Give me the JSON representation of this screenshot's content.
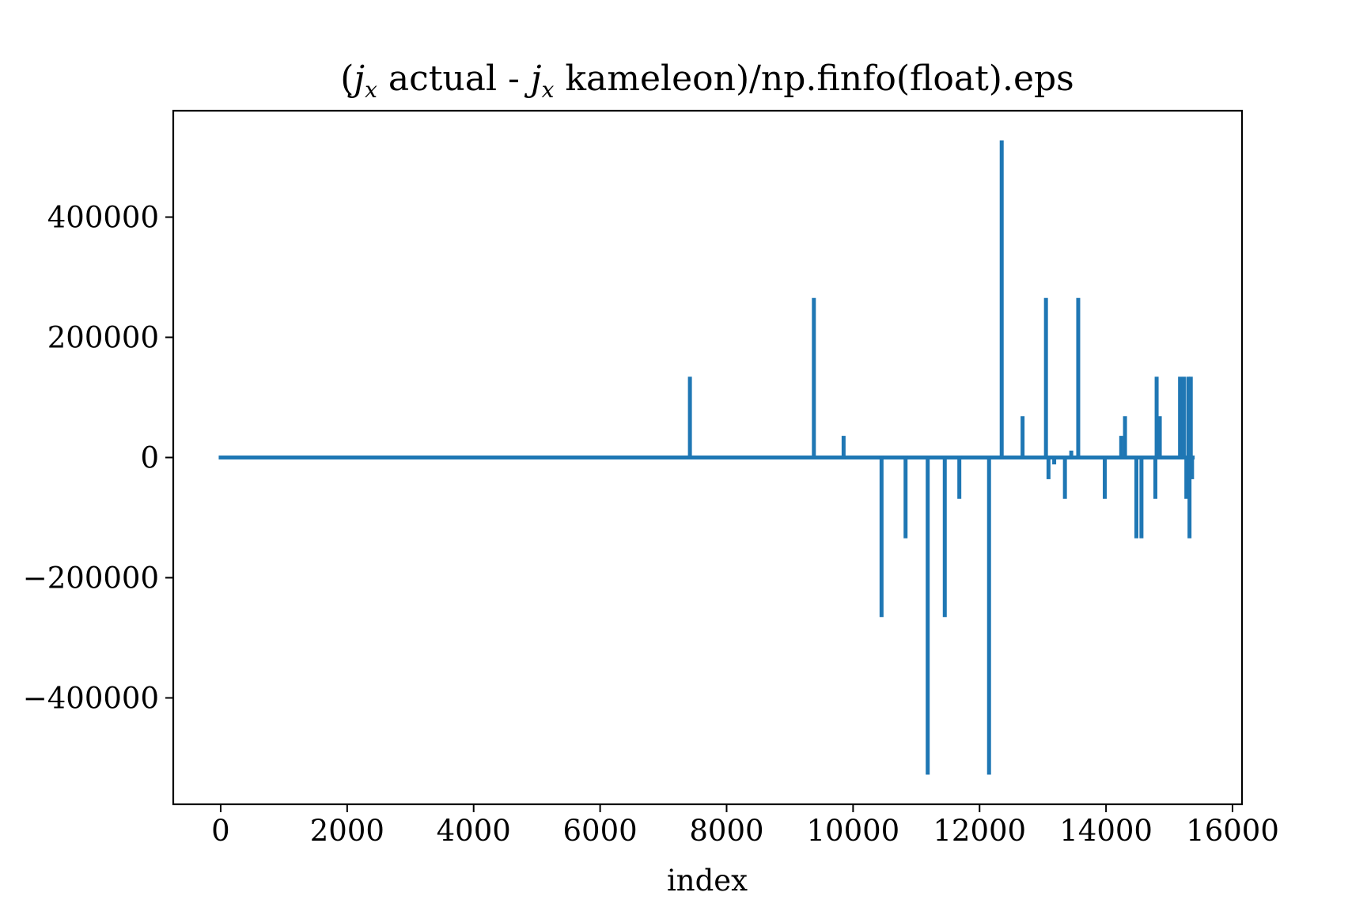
{
  "chart_data": {
    "type": "line",
    "title": {
      "prefix": "(",
      "sym1": "j",
      "sub1": "x",
      "mid": " actual - ",
      "sym2": "j",
      "sub2": "x",
      "suffix": " kameleon)/np.finfo(float).eps"
    },
    "xlabel": "index",
    "ylabel": "",
    "xlim": [
      -750,
      16150
    ],
    "ylim": [
      -577000,
      577000
    ],
    "xticks": [
      0,
      2000,
      4000,
      6000,
      8000,
      10000,
      12000,
      14000,
      16000
    ],
    "xtick_labels": [
      "0",
      "2000",
      "4000",
      "6000",
      "8000",
      "10000",
      "12000",
      "14000",
      "16000"
    ],
    "yticks": [
      -400000,
      -200000,
      0,
      200000,
      400000
    ],
    "ytick_labels": [
      "−400000",
      "−200000",
      "0",
      "200000",
      "400000"
    ],
    "grid": false,
    "series": [
      {
        "color": "#1f77b4",
        "baseline": 0,
        "x_range": [
          0,
          15370
        ],
        "spikes": [
          {
            "x": 7420,
            "y": 131072
          },
          {
            "x": 9380,
            "y": 262144
          },
          {
            "x": 9850,
            "y": 32768
          },
          {
            "x": 10450,
            "y": -262144
          },
          {
            "x": 10830,
            "y": -131072
          },
          {
            "x": 11180,
            "y": -524288
          },
          {
            "x": 11450,
            "y": -262144
          },
          {
            "x": 11680,
            "y": -65536
          },
          {
            "x": 12150,
            "y": -524288
          },
          {
            "x": 12350,
            "y": 524288
          },
          {
            "x": 12680,
            "y": 65536
          },
          {
            "x": 13050,
            "y": 262144
          },
          {
            "x": 13090,
            "y": -32768
          },
          {
            "x": 13180,
            "y": -8192
          },
          {
            "x": 13350,
            "y": -65536
          },
          {
            "x": 13450,
            "y": 8192
          },
          {
            "x": 13560,
            "y": 262144
          },
          {
            "x": 13980,
            "y": -65536
          },
          {
            "x": 14240,
            "y": 32768
          },
          {
            "x": 14300,
            "y": 65536
          },
          {
            "x": 14480,
            "y": -131072
          },
          {
            "x": 14560,
            "y": -131072
          },
          {
            "x": 14780,
            "y": -65536
          },
          {
            "x": 14800,
            "y": 131072
          },
          {
            "x": 14850,
            "y": 65536
          },
          {
            "x": 15170,
            "y": 131072
          },
          {
            "x": 15230,
            "y": 131072
          },
          {
            "x": 15270,
            "y": -65536
          },
          {
            "x": 15300,
            "y": 131072
          },
          {
            "x": 15320,
            "y": -131072
          },
          {
            "x": 15340,
            "y": 131072
          },
          {
            "x": 15360,
            "y": -32768
          }
        ]
      }
    ]
  }
}
